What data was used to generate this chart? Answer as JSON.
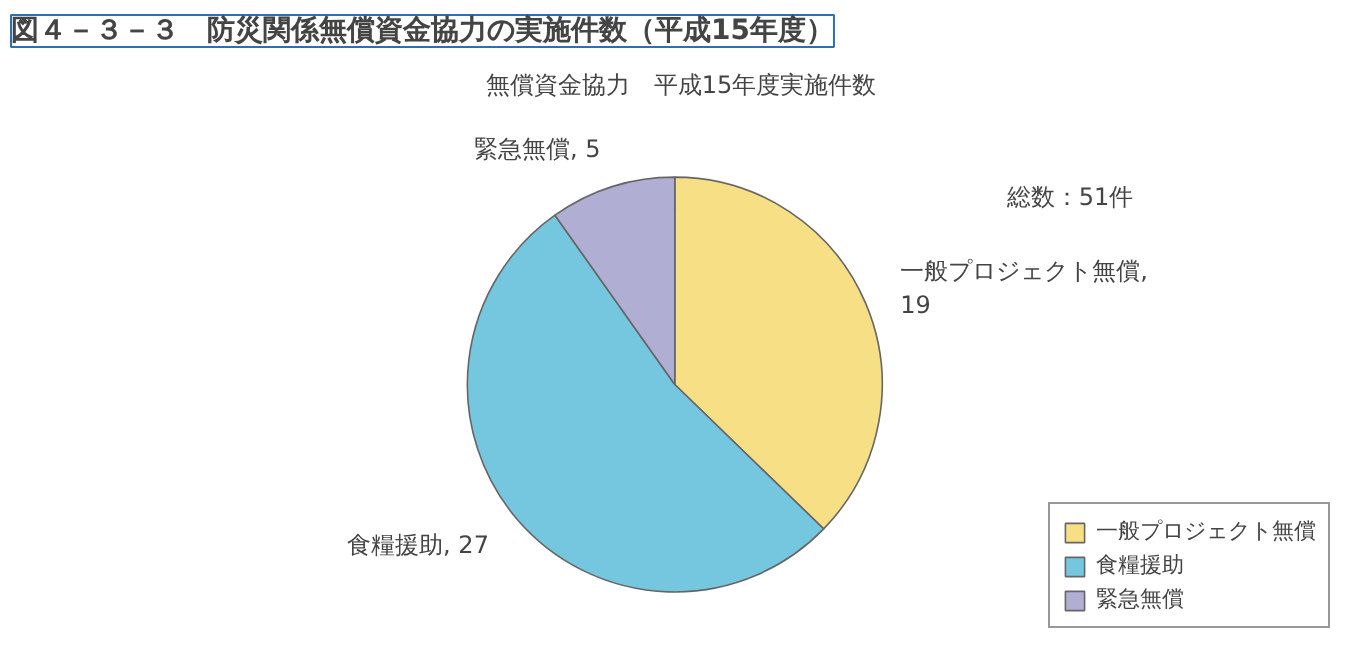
{
  "chart_data": {
    "type": "pie",
    "title": "図４－３－３　防災関係無償資金協力の実施件数（平成15年度）",
    "subtitle": "無償資金協力　平成15年度実施件数",
    "categories": [
      "一般プロジェクト無償",
      "食糧援助",
      "緊急無償"
    ],
    "values": [
      19,
      27,
      5
    ],
    "colors": [
      "#f6df84",
      "#75c7df",
      "#b1aed4"
    ],
    "annotations": [
      "総数：51件"
    ],
    "value_labels": [
      "一般プロジェクト無償,\n19",
      "食糧援助, 27",
      "緊急無償, 5"
    ],
    "legend": "bottom right"
  }
}
